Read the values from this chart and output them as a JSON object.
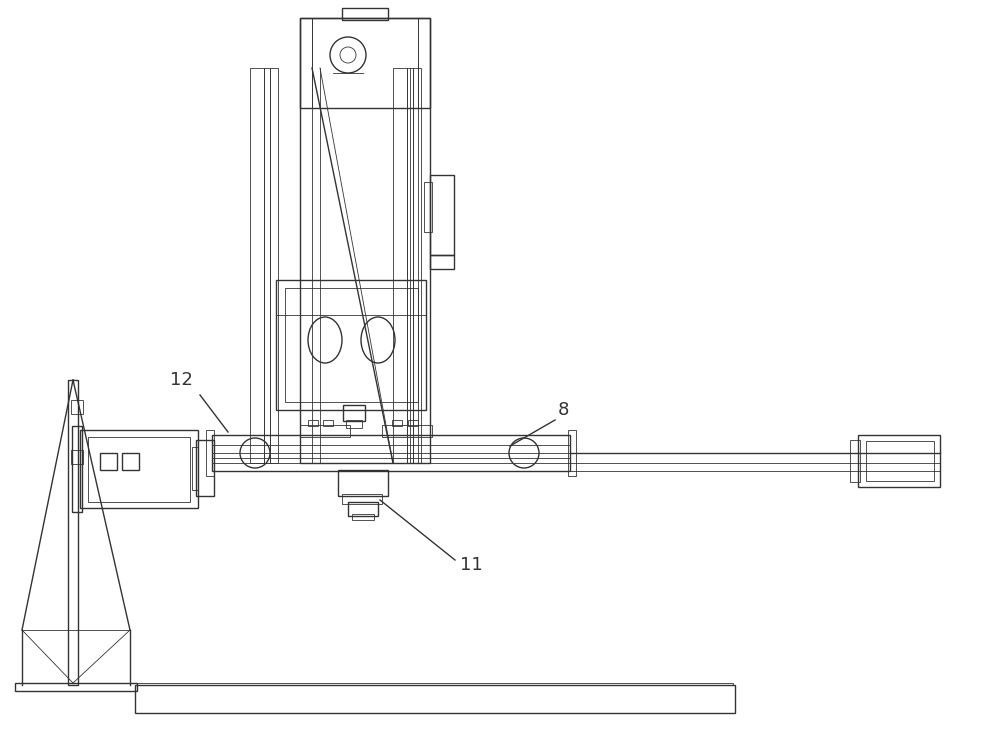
{
  "bg_color": "#ffffff",
  "lc": "#333333",
  "lw": 1.0,
  "lw_t": 0.6,
  "figsize": [
    10.0,
    7.47
  ]
}
